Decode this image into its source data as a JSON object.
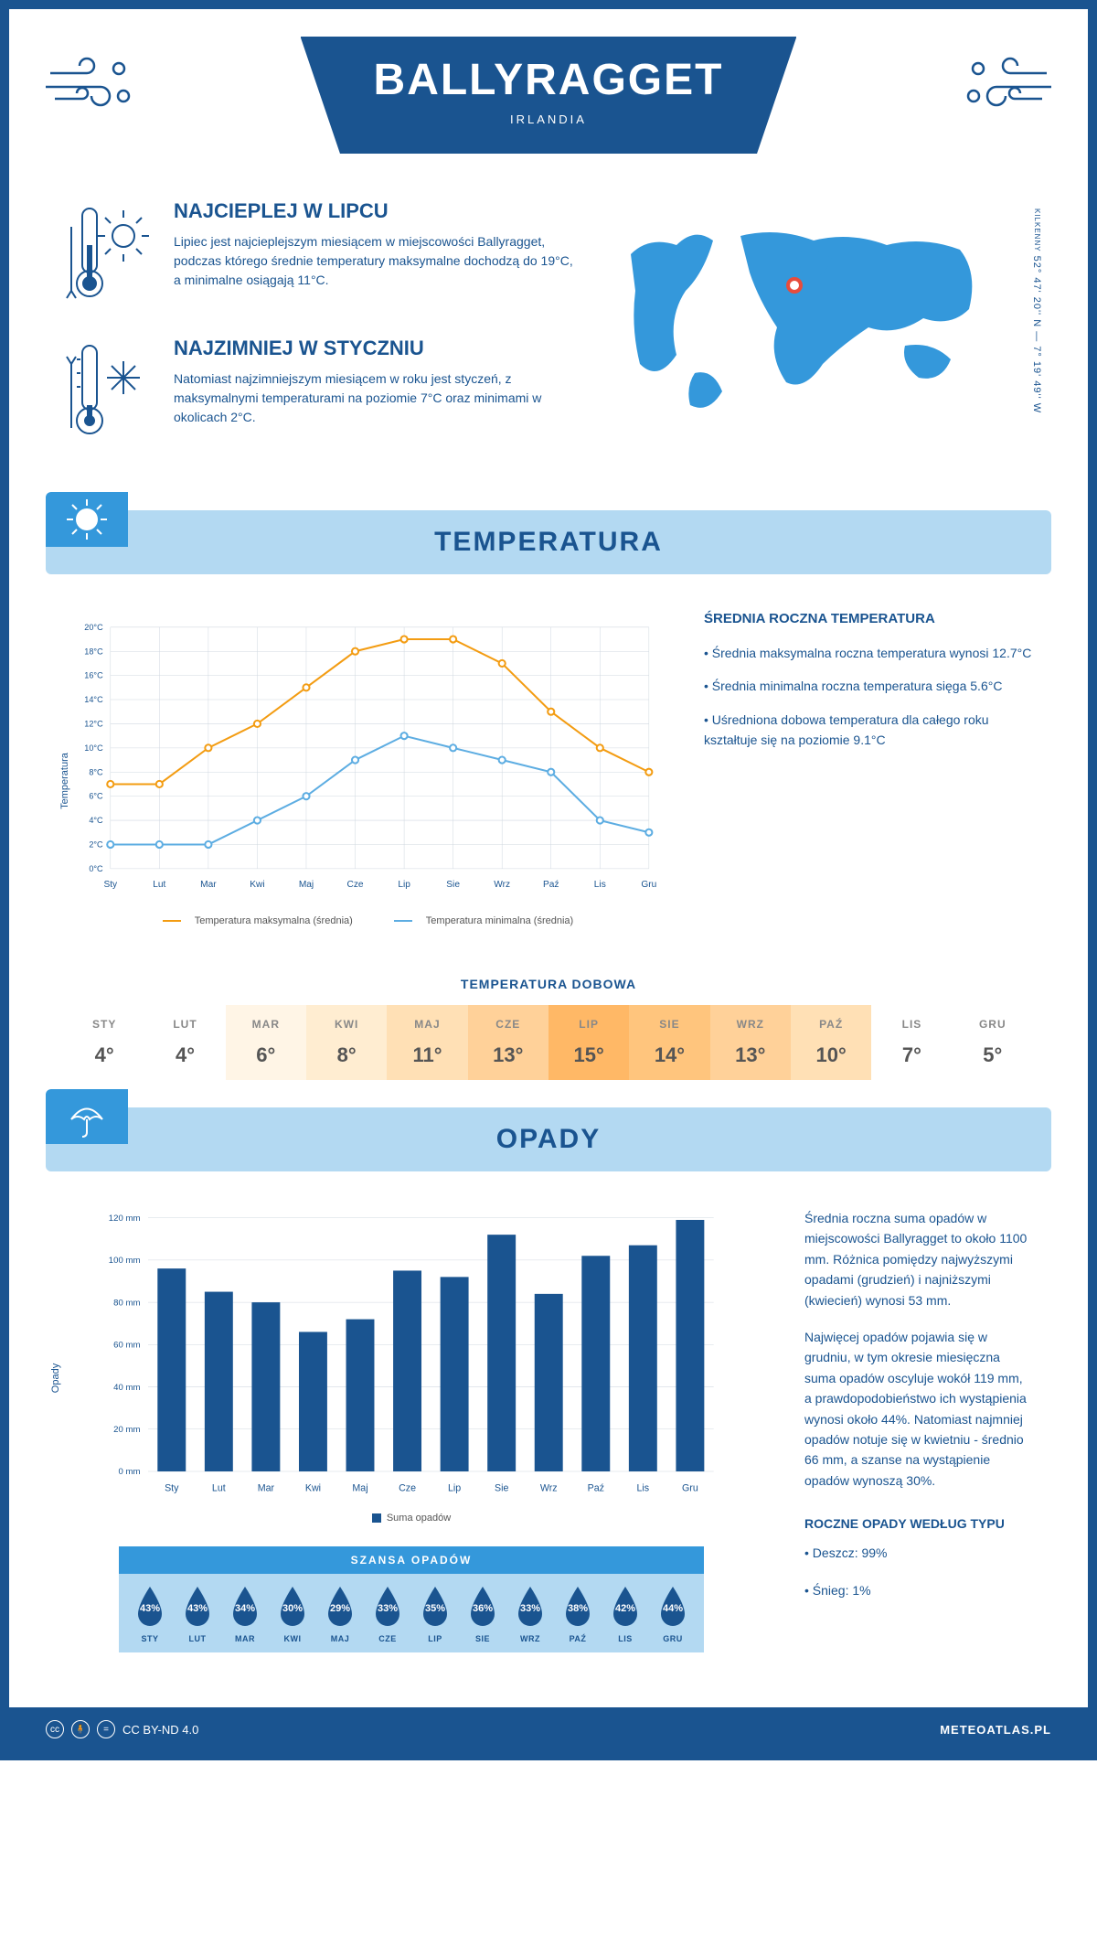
{
  "colors": {
    "primary": "#1a5490",
    "accent": "#3498db",
    "light_blue": "#b3d9f2",
    "orange_line": "#f39c12",
    "blue_line": "#5dade2",
    "bar_fill": "#1a5490",
    "drop_fill": "#1a5490",
    "grid": "#d0d8e0"
  },
  "header": {
    "title": "BALLYRAGGET",
    "country": "IRLANDIA"
  },
  "coords": {
    "text": "52° 47' 20'' N — 7° 19' 49'' W",
    "region": "KILKENNY"
  },
  "intro": {
    "warm": {
      "title": "NAJCIEPLEJ W LIPCU",
      "text": "Lipiec jest najcieplejszym miesiącem w miejscowości Ballyragget, podczas którego średnie temperatury maksymalne dochodzą do 19°C, a minimalne osiągają 11°C."
    },
    "cold": {
      "title": "NAJZIMNIEJ W STYCZNIU",
      "text": "Natomiast najzimniejszym miesiącem w roku jest styczeń, z maksymalnymi temperaturami na poziomie 7°C oraz minimami w okolicach 2°C."
    }
  },
  "sections": {
    "temperature": "TEMPERATURA",
    "precipitation": "OPADY"
  },
  "temp_chart": {
    "type": "line",
    "ylabel": "Temperatura",
    "months": [
      "Sty",
      "Lut",
      "Mar",
      "Kwi",
      "Maj",
      "Cze",
      "Lip",
      "Sie",
      "Wrz",
      "Paź",
      "Lis",
      "Gru"
    ],
    "ymin": 0,
    "ymax": 20,
    "ystep": 2,
    "ysuffix": "°C",
    "series": [
      {
        "label": "Temperatura maksymalna (średnia)",
        "color": "#f39c12",
        "values": [
          7,
          7,
          10,
          12,
          15,
          18,
          19,
          19,
          17,
          13,
          10,
          8
        ]
      },
      {
        "label": "Temperatura minimalna (średnia)",
        "color": "#5dade2",
        "values": [
          2,
          2,
          2,
          4,
          6,
          9,
          11,
          10,
          9,
          8,
          4,
          3
        ]
      }
    ]
  },
  "temp_side": {
    "title": "ŚREDNIA ROCZNA TEMPERATURA",
    "points": [
      "• Średnia maksymalna roczna temperatura wynosi 12.7°C",
      "• Średnia minimalna roczna temperatura sięga 5.6°C",
      "• Uśredniona dobowa temperatura dla całego roku kształtuje się na poziomie 9.1°C"
    ]
  },
  "daily": {
    "title": "TEMPERATURA DOBOWA",
    "months": [
      "STY",
      "LUT",
      "MAR",
      "KWI",
      "MAJ",
      "CZE",
      "LIP",
      "SIE",
      "WRZ",
      "PAŹ",
      "LIS",
      "GRU"
    ],
    "values": [
      "4°",
      "4°",
      "6°",
      "8°",
      "11°",
      "13°",
      "15°",
      "14°",
      "13°",
      "10°",
      "7°",
      "5°"
    ],
    "cell_colors": [
      "#ffffff",
      "#ffffff",
      "#fff5e6",
      "#ffedd1",
      "#ffe0b5",
      "#ffd199",
      "#ffb866",
      "#ffc57d",
      "#ffd199",
      "#ffe0b5",
      "#ffffff",
      "#ffffff"
    ]
  },
  "precip_chart": {
    "type": "bar",
    "ylabel": "Opady",
    "months": [
      "Sty",
      "Lut",
      "Mar",
      "Kwi",
      "Maj",
      "Cze",
      "Lip",
      "Sie",
      "Wrz",
      "Paź",
      "Lis",
      "Gru"
    ],
    "ymin": 0,
    "ymax": 120,
    "ystep": 20,
    "ysuffix": " mm",
    "values": [
      96,
      85,
      80,
      66,
      72,
      95,
      92,
      112,
      84,
      102,
      107,
      119
    ],
    "bar_color": "#1a5490",
    "legend": "Suma opadów"
  },
  "precip_side": {
    "p1": "Średnia roczna suma opadów w miejscowości Ballyragget to około 1100 mm. Różnica pomiędzy najwyższymi opadami (grudzień) i najniższymi (kwiecień) wynosi 53 mm.",
    "p2": "Najwięcej opadów pojawia się w grudniu, w tym okresie miesięczna suma opadów oscyluje wokół 119 mm, a prawdopodobieństwo ich wystąpienia wynosi około 44%. Natomiast najmniej opadów notuje się w kwietniu - średnio 66 mm, a szanse na wystąpienie opadów wynoszą 30%.",
    "type_title": "ROCZNE OPADY WEDŁUG TYPU",
    "types": [
      "• Deszcz: 99%",
      "• Śnieg: 1%"
    ]
  },
  "chance": {
    "title": "SZANSA OPADÓW",
    "months": [
      "STY",
      "LUT",
      "MAR",
      "KWI",
      "MAJ",
      "CZE",
      "LIP",
      "SIE",
      "WRZ",
      "PAŹ",
      "LIS",
      "GRU"
    ],
    "values": [
      "43%",
      "43%",
      "34%",
      "30%",
      "29%",
      "33%",
      "35%",
      "36%",
      "33%",
      "38%",
      "42%",
      "44%"
    ]
  },
  "footer": {
    "license": "CC BY-ND 4.0",
    "brand": "METEOATLAS.PL"
  }
}
